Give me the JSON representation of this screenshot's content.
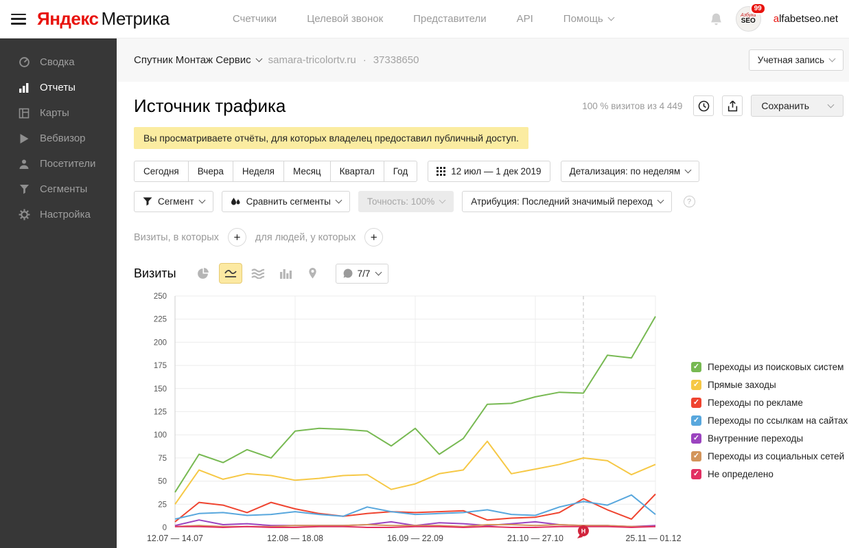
{
  "header": {
    "logo_brand": "Яндекс",
    "logo_product": "Метрика",
    "nav": [
      {
        "key": "counters",
        "label": "Счетчики",
        "caret": false
      },
      {
        "key": "target-call",
        "label": "Целевой звонок",
        "caret": false
      },
      {
        "key": "representatives",
        "label": "Представители",
        "caret": false
      },
      {
        "key": "api",
        "label": "API",
        "caret": false
      },
      {
        "key": "help",
        "label": "Помощь",
        "caret": true
      }
    ],
    "badge_count": "99",
    "account_first": "a",
    "account_rest": "lfabetseo.net",
    "avatar_line1": "Азбука",
    "avatar_line2": "SEO"
  },
  "sidebar": {
    "items": [
      {
        "key": "summary",
        "icon": "speedometer-icon",
        "label": "Сводка",
        "active": false
      },
      {
        "key": "reports",
        "icon": "bar-chart-icon",
        "label": "Отчеты",
        "active": true
      },
      {
        "key": "maps",
        "icon": "layout-icon",
        "label": "Карты",
        "active": false
      },
      {
        "key": "webvisor",
        "icon": "play-icon",
        "label": "Вебвизор",
        "active": false
      },
      {
        "key": "visitors",
        "icon": "person-icon",
        "label": "Посетители",
        "active": false
      },
      {
        "key": "segments",
        "icon": "funnel-icon",
        "label": "Сегменты",
        "active": false
      },
      {
        "key": "settings",
        "icon": "gear-icon",
        "label": "Настройка",
        "active": false
      }
    ]
  },
  "counterbar": {
    "counter_name": "Спутник Монтаж Сервис",
    "domain": "samara-tricolortv.ru",
    "dot": "·",
    "counter_id": "37338650",
    "account_button": "Учетная запись"
  },
  "page": {
    "title": "Источник трафика",
    "visits_summary": "100 % визитов из 4 449",
    "save_button": "Сохранить",
    "notice": "Вы просматриваете отчёты, для которых владелец предоставил публичный доступ."
  },
  "date_controls": {
    "presets": [
      {
        "key": "today",
        "label": "Сегодня"
      },
      {
        "key": "yesterday",
        "label": "Вчера"
      },
      {
        "key": "week",
        "label": "Неделя"
      },
      {
        "key": "month",
        "label": "Месяц"
      },
      {
        "key": "quarter",
        "label": "Квартал"
      },
      {
        "key": "year",
        "label": "Год"
      }
    ],
    "range": "12 июл — 1 дек 2019",
    "detail": "Детализация: по неделям"
  },
  "filter_controls": {
    "segment": "Сегмент",
    "compare": "Сравнить сегменты",
    "accuracy": "Точность: 100%",
    "attribution": "Атрибуция: Последний значимый переход",
    "help": "?"
  },
  "query_builder": {
    "visits_label": "Визиты, в которых",
    "people_label": "для людей, у которых",
    "plus": "+"
  },
  "metric_row": {
    "label": "Визиты",
    "annotations": "7/7"
  },
  "chart_data": {
    "type": "line",
    "title": "Визиты",
    "ylim": [
      0,
      250
    ],
    "ytick_step": 25,
    "grid": true,
    "legend_position": "right",
    "x_ticks": [
      {
        "index": 0,
        "label": "12.07 — 14.07"
      },
      {
        "index": 5,
        "label": "12.08 — 18.08"
      },
      {
        "index": 10,
        "label": "16.09 — 22.09"
      },
      {
        "index": 15,
        "label": "21.10 — 27.10"
      },
      {
        "index": 20,
        "label": "25.11 — 01.12"
      }
    ],
    "grid_x_indices": [
      5,
      10,
      15
    ],
    "dashed_guide_index": 17,
    "annotation_marker": {
      "label": "Н",
      "index": 17,
      "color": "#d1243c"
    },
    "series": [
      {
        "name": "Переходы из поисковых систем",
        "color": "#77b952",
        "values": [
          38,
          79,
          70,
          84,
          75,
          104,
          107,
          106,
          104,
          88,
          107,
          79,
          96,
          133,
          134,
          141,
          146,
          145,
          186,
          183,
          228
        ]
      },
      {
        "name": "Прямые заходы",
        "color": "#f6c845",
        "values": [
          25,
          62,
          52,
          58,
          56,
          51,
          53,
          56,
          57,
          41,
          47,
          58,
          62,
          93,
          58,
          63,
          68,
          75,
          72,
          57,
          68
        ]
      },
      {
        "name": "Переходы по рекламе",
        "color": "#ef4430",
        "values": [
          6,
          27,
          24,
          16,
          27,
          20,
          15,
          12,
          15,
          17,
          16,
          17,
          18,
          8,
          10,
          11,
          16,
          31,
          19,
          9,
          36
        ]
      },
      {
        "name": "Переходы по ссылкам на сайтах",
        "color": "#58a7dd",
        "values": [
          9,
          15,
          16,
          13,
          14,
          17,
          14,
          12,
          22,
          17,
          14,
          15,
          16,
          19,
          14,
          13,
          22,
          28,
          24,
          35,
          14
        ]
      },
      {
        "name": "Внутренние переходы",
        "color": "#9b44bf",
        "values": [
          2,
          8,
          3,
          4,
          2,
          2,
          2,
          2,
          3,
          6,
          2,
          5,
          4,
          2,
          4,
          6,
          3,
          2,
          2,
          1,
          2
        ]
      },
      {
        "name": "Переходы из социальных сетей",
        "color": "#d3955b",
        "values": [
          1,
          2,
          1,
          1,
          1,
          2,
          2,
          2,
          3,
          2,
          2,
          2,
          1,
          3,
          3,
          2,
          3,
          2,
          2,
          1,
          1
        ]
      },
      {
        "name": "Не определено",
        "color": "#e23063",
        "values": [
          1,
          1,
          0,
          1,
          0,
          0,
          1,
          1,
          0,
          0,
          1,
          1,
          0,
          1,
          0,
          0,
          1,
          1,
          1,
          0,
          1
        ]
      }
    ]
  }
}
